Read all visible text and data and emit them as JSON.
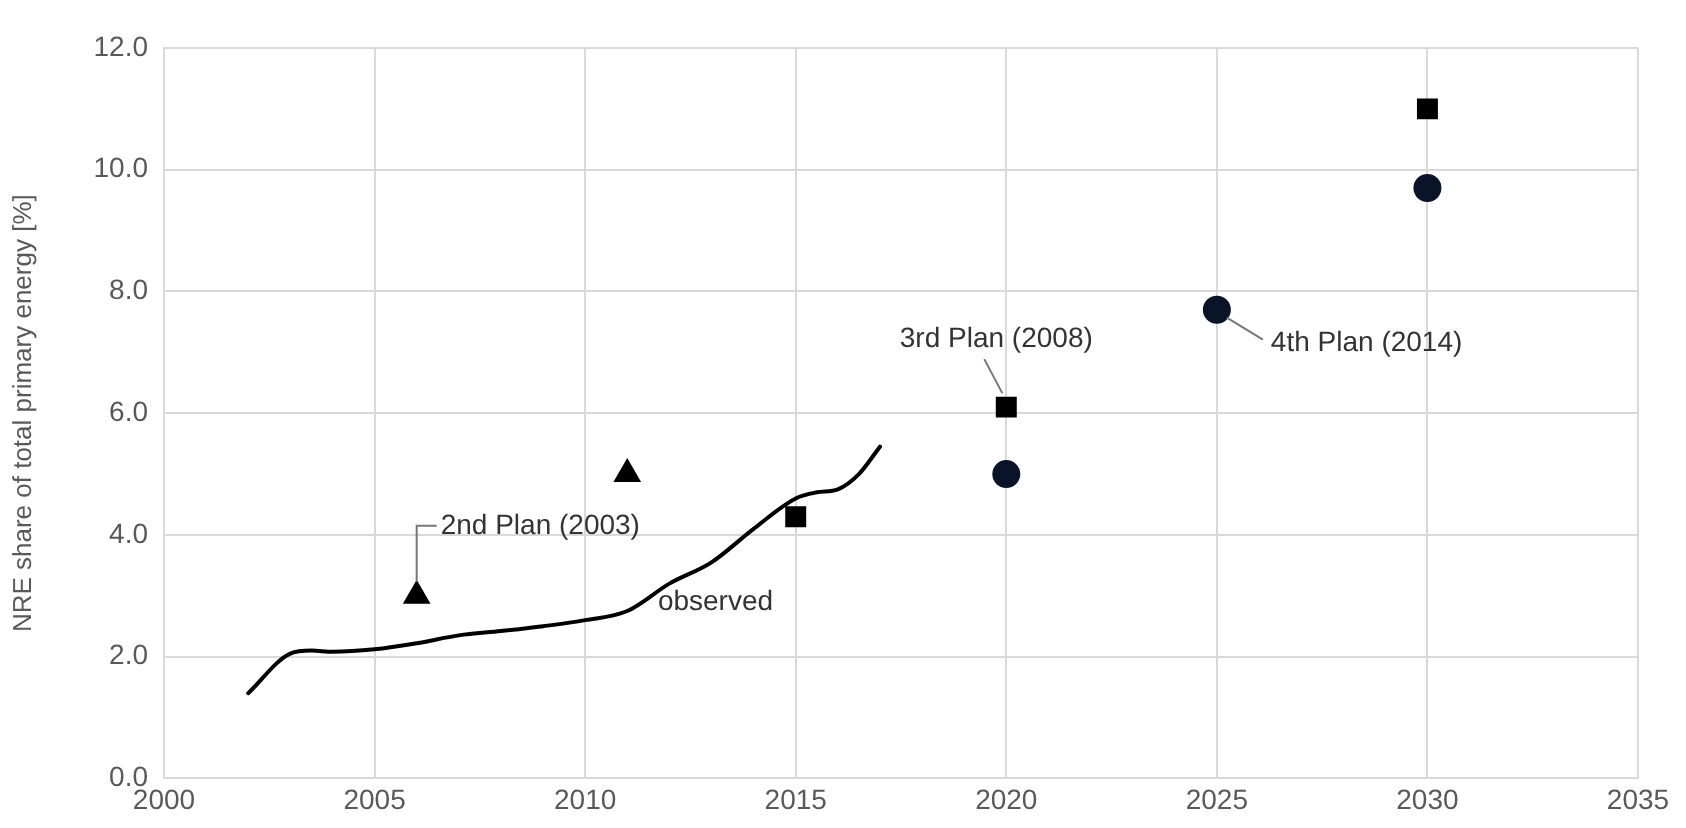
{
  "chart_data": {
    "type": "scatter",
    "ylabel": "NRE share of total primary energy [%]",
    "xlim": [
      2000,
      2035
    ],
    "xticks": [
      2000,
      2005,
      2010,
      2015,
      2020,
      2025,
      2030,
      2035
    ],
    "ylim": [
      0,
      12
    ],
    "yticks": [
      {
        "value": 0,
        "label": "0.0"
      },
      {
        "value": 2,
        "label": "2.0"
      },
      {
        "value": 4,
        "label": "4.0"
      },
      {
        "value": 6,
        "label": "6.0"
      },
      {
        "value": 8,
        "label": "8.0"
      },
      {
        "value": 10,
        "label": "10.0"
      },
      {
        "value": 12,
        "label": "12.0"
      }
    ],
    "grid": true,
    "legend": false,
    "series": [
      {
        "type": "line",
        "color": "#000000",
        "marker": "none",
        "line_style": "solid",
        "x": [
          2002,
          2003,
          2003.5,
          2004,
          2005,
          2006,
          2007,
          2008,
          2009,
          2010,
          2011,
          2012,
          2013,
          2014,
          2015,
          2015.5,
          2016,
          2016.5,
          2017
        ],
        "values": [
          1.4,
          2.05,
          2.1,
          2.08,
          2.12,
          2.22,
          2.35,
          2.42,
          2.5,
          2.6,
          2.75,
          3.2,
          3.55,
          4.1,
          4.6,
          4.7,
          4.75,
          5.0,
          5.45
        ]
      },
      {
        "type": "scatter",
        "color": "#000000",
        "marker": "triangle",
        "x": [
          2006,
          2011
        ],
        "values": [
          3.0,
          5.0
        ]
      },
      {
        "type": "scatter",
        "color": "#000000",
        "marker": "square",
        "x": [
          2015,
          2020,
          2030
        ],
        "values": [
          4.3,
          6.1,
          11.0
        ]
      },
      {
        "type": "scatter",
        "color": "#0a1428",
        "marker": "circle",
        "x": [
          2020,
          2025,
          2030
        ],
        "values": [
          5.0,
          7.7,
          9.7
        ]
      }
    ],
    "annotations": [
      {
        "text": "2nd Plan (2003)",
        "x": 2006,
        "y": 3.0
      },
      {
        "text": "3rd Plan (2008)",
        "x": 2020,
        "y": 6.1
      },
      {
        "text": "4th Plan (2014)",
        "x": 2025,
        "y": 7.7
      },
      {
        "text": "observed",
        "x": 2013,
        "y": 3.55
      }
    ]
  }
}
